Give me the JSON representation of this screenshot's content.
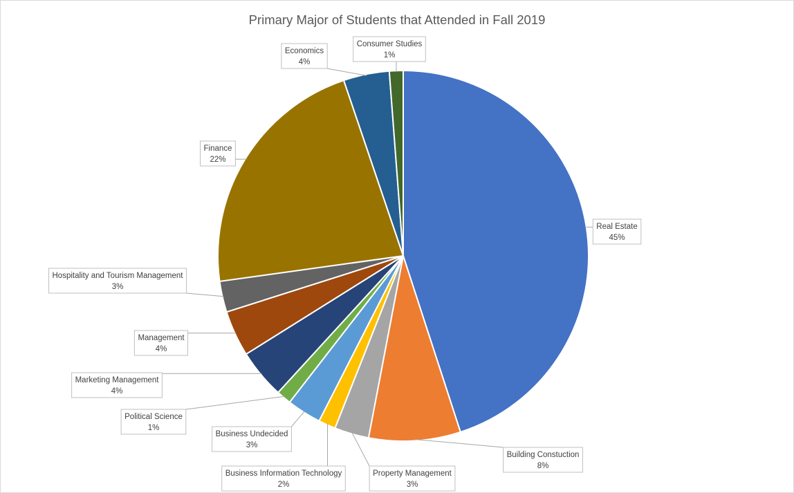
{
  "chart_data": {
    "type": "pie",
    "title": "Primary Major of Students that Attended in Fall 2019",
    "start_angle_deg": 0,
    "direction": "clockwise",
    "slices": [
      {
        "label": "Real Estate",
        "value": 45,
        "value_label": "45%",
        "color": "#4472C4"
      },
      {
        "label": "Building Constuction",
        "value": 8,
        "value_label": "8%",
        "color": "#ED7D31"
      },
      {
        "label": "Property Management",
        "value": 3,
        "value_label": "3%",
        "color": "#A5A5A5"
      },
      {
        "label": "Business Information Technology",
        "value": 1.5,
        "value_label": "2%",
        "color": "#FFC000"
      },
      {
        "label": "Business Undecided",
        "value": 3,
        "value_label": "3%",
        "color": "#5B9BD5"
      },
      {
        "label": "Political Science",
        "value": 1.3,
        "value_label": "1%",
        "color": "#70AD47"
      },
      {
        "label": "Marketing Management",
        "value": 4.3,
        "value_label": "4%",
        "color": "#264478"
      },
      {
        "label": "Management",
        "value": 4,
        "value_label": "4%",
        "color": "#9E480E"
      },
      {
        "label": "Hospitality and Tourism Management",
        "value": 2.7,
        "value_label": "3%",
        "color": "#636363"
      },
      {
        "label": "Finance",
        "value": 22,
        "value_label": "22%",
        "color": "#997300"
      },
      {
        "label": "Economics",
        "value": 4,
        "value_label": "4%",
        "color": "#255E91"
      },
      {
        "label": "Consumer Studies",
        "value": 1.2,
        "value_label": "1%",
        "color": "#43682B"
      }
    ]
  }
}
